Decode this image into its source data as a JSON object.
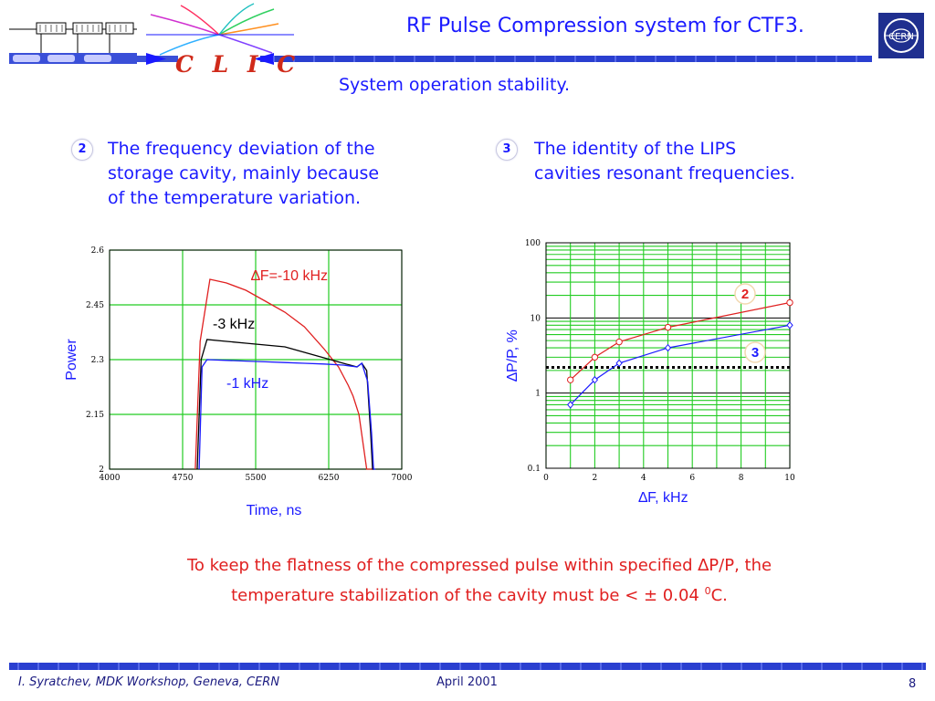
{
  "header": {
    "title": "RF Pulse Compression system for CTF3.",
    "subtitle": "System operation stability.",
    "logo_text": "C L I C",
    "org_logo_text": "CERN"
  },
  "points": [
    {
      "number": "2",
      "lines": [
        "The frequency  deviation of the",
        "storage cavity, mainly because",
        "of the temperature variation."
      ]
    },
    {
      "number": "3",
      "lines": [
        "The identity of the LIPS",
        "cavities resonant frequencies."
      ]
    }
  ],
  "note": {
    "line1": "To keep the flatness of the compressed pulse within specified ∆P/P, the",
    "line2_pre": "temperature stabilization of the cavity must be <  ± 0.04 ",
    "line2_sup": "0",
    "line2_post": "C."
  },
  "footer": {
    "author": "I. Syratchev, MDK Workshop, Geneva, CERN",
    "date": "April 2001",
    "page": "8"
  },
  "colors": {
    "accent": "#1a1aff",
    "red": "#e02020",
    "grid": "#22cc22",
    "band": "#2a3fd0"
  },
  "chart_data": [
    {
      "type": "line",
      "xlabel": "Time, ns",
      "ylabel": "Power",
      "xlim": [
        4000,
        7000
      ],
      "ylim": [
        2,
        2.6
      ],
      "xticks": [
        "4000",
        "4750",
        "5500",
        "6250",
        "7000"
      ],
      "yticks": [
        "2",
        "2.15",
        "2.3",
        "2.45",
        "2.6"
      ],
      "grid": true,
      "annotations": [
        {
          "text": "∆F=-10 kHz",
          "color": "#e02020"
        },
        {
          "text": "-3 kHz",
          "color": "#000000"
        },
        {
          "text": "-1 kHz",
          "color": "#1a1aff"
        }
      ],
      "series": [
        {
          "name": "∆F=-10 kHz",
          "color": "#e02020",
          "x": [
            4880,
            4930,
            5030,
            5200,
            5400,
            5600,
            5800,
            6000,
            6200,
            6350,
            6450,
            6500,
            6560,
            6640,
            6680,
            6720
          ],
          "y": [
            2.0,
            2.35,
            2.52,
            2.51,
            2.49,
            2.46,
            2.43,
            2.39,
            2.33,
            2.28,
            2.23,
            2.2,
            2.15,
            2.0,
            2.0,
            2.0
          ]
        },
        {
          "name": "-3 kHz",
          "color": "#000000",
          "x": [
            4900,
            4940,
            5000,
            5200,
            5400,
            5600,
            5800,
            6000,
            6200,
            6400,
            6540,
            6590,
            6640,
            6680,
            6700,
            6720
          ],
          "y": [
            2.0,
            2.3,
            2.355,
            2.35,
            2.345,
            2.34,
            2.335,
            2.32,
            2.305,
            2.29,
            2.28,
            2.29,
            2.27,
            2.1,
            2.0,
            2.0
          ]
        },
        {
          "name": "-1 kHz",
          "color": "#1a1aff",
          "x": [
            4920,
            4950,
            5000,
            5200,
            5400,
            5600,
            5800,
            6000,
            6200,
            6400,
            6540,
            6590,
            6650,
            6690,
            6710,
            6730
          ],
          "y": [
            2.0,
            2.28,
            2.3,
            2.298,
            2.296,
            2.294,
            2.292,
            2.29,
            2.288,
            2.285,
            2.28,
            2.29,
            2.24,
            2.1,
            2.0,
            2.0
          ]
        }
      ]
    },
    {
      "type": "line",
      "xlabel": "∆F,  kHz",
      "ylabel": "∆P/P, %",
      "xlim": [
        0,
        10
      ],
      "ylim": [
        0.1,
        100
      ],
      "yscale": "log",
      "xticks": [
        "0",
        "2",
        "4",
        "6",
        "8",
        "10"
      ],
      "yticks": [
        "0.1",
        "1",
        "10",
        "100"
      ],
      "grid": true,
      "threshold": 2.2,
      "series": [
        {
          "name": "2",
          "color": "#e02020",
          "marker": "circle",
          "x": [
            1,
            2,
            3,
            5,
            10
          ],
          "y": [
            1.5,
            3.0,
            4.8,
            7.5,
            16.0
          ]
        },
        {
          "name": "3",
          "color": "#1a1aff",
          "marker": "diamond",
          "x": [
            1,
            2,
            3,
            5,
            10
          ],
          "y": [
            0.7,
            1.5,
            2.5,
            4.0,
            8.0
          ]
        }
      ]
    }
  ]
}
